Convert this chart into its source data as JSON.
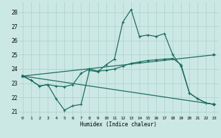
{
  "xlabel": "Humidex (Indice chaleur)",
  "bg_color": "#cce8e4",
  "grid_color": "#aacfcb",
  "line_color": "#1a6b60",
  "xlim": [
    -0.5,
    23.5
  ],
  "ylim": [
    20.7,
    28.7
  ],
  "yticks": [
    21,
    22,
    23,
    24,
    25,
    26,
    27,
    28
  ],
  "xticks": [
    0,
    1,
    2,
    3,
    4,
    5,
    6,
    7,
    8,
    9,
    10,
    11,
    12,
    13,
    14,
    15,
    16,
    17,
    18,
    19,
    20,
    21,
    22,
    23
  ],
  "line1_x": [
    0,
    1,
    2,
    3,
    4,
    5,
    6,
    7,
    8,
    9,
    10,
    11,
    12,
    13,
    14,
    15,
    16,
    17,
    18,
    19,
    20,
    21,
    22,
    23
  ],
  "line1_y": [
    23.5,
    23.2,
    22.8,
    22.9,
    21.9,
    21.1,
    21.4,
    21.5,
    23.9,
    23.8,
    24.3,
    24.7,
    27.3,
    28.2,
    26.3,
    26.4,
    26.3,
    26.5,
    25.0,
    24.2,
    22.3,
    21.9,
    21.6,
    21.5
  ],
  "line2_x": [
    0,
    1,
    2,
    3,
    4,
    5,
    6,
    7,
    8,
    9,
    10,
    11,
    12,
    13,
    14,
    15,
    16,
    17,
    18,
    19,
    20,
    21,
    22,
    23
  ],
  "line2_y": [
    23.5,
    23.2,
    22.8,
    22.9,
    22.8,
    22.75,
    22.9,
    23.7,
    24.0,
    23.85,
    23.9,
    24.0,
    24.2,
    24.4,
    24.5,
    24.6,
    24.65,
    24.7,
    24.75,
    24.3,
    22.3,
    21.9,
    21.6,
    21.5
  ],
  "line3_x": [
    0,
    23
  ],
  "line3_y": [
    23.5,
    21.5
  ],
  "line4_x": [
    0,
    23
  ],
  "line4_y": [
    23.5,
    25.0
  ]
}
